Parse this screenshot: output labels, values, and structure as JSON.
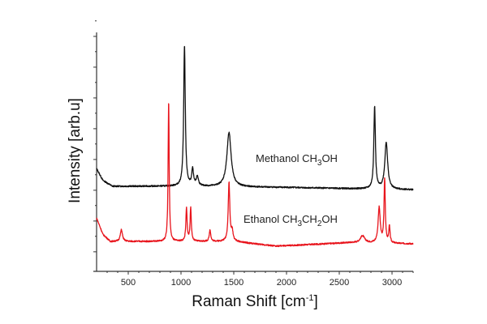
{
  "chart_data": {
    "type": "line",
    "title": "",
    "xlabel": "Raman Shift [cm",
    "xlabel_sup": "-1",
    "xlabel_end": "]",
    "ylabel": "Intensity [arb.u]",
    "xlim": [
      200,
      3200
    ],
    "ylim": [
      0,
      1
    ],
    "xticks": [
      500,
      1000,
      1500,
      2000,
      2500,
      3000
    ],
    "xtick_labels": [
      "500",
      "1000",
      "1500",
      "2000",
      "2500",
      "3000"
    ],
    "yticks": [
      0.066,
      0.197,
      0.328,
      0.459,
      0.59,
      0.721,
      0.852,
      0.983
    ],
    "grid": false,
    "series": [
      {
        "name": "Methanol CH3OH",
        "label_parts": [
          "Methanol CH",
          "3",
          "OH"
        ],
        "color": "#111111",
        "baseline": [
          [
            200,
            0.42
          ],
          [
            260,
            0.37
          ],
          [
            350,
            0.345
          ],
          [
            1000,
            0.345
          ],
          [
            2000,
            0.34
          ],
          [
            3200,
            0.33
          ]
        ],
        "peaks": [
          {
            "x": 1033,
            "height": 0.6,
            "width": 9
          },
          {
            "x": 1110,
            "height": 0.07,
            "width": 10
          },
          {
            "x": 1155,
            "height": 0.04,
            "width": 12
          },
          {
            "x": 1455,
            "height": 0.23,
            "width": 24
          },
          {
            "x": 2835,
            "height": 0.35,
            "width": 9
          },
          {
            "x": 2945,
            "height": 0.2,
            "width": 16
          }
        ]
      },
      {
        "name": "Ethanol CH3CH2OH",
        "label_parts": [
          "Ethanol CH",
          "3",
          "CH",
          "2",
          "OH"
        ],
        "color": "#e8141c",
        "baseline": [
          [
            200,
            0.21
          ],
          [
            260,
            0.14
          ],
          [
            330,
            0.11
          ],
          [
            1500,
            0.11
          ],
          [
            1900,
            0.09
          ],
          [
            2600,
            0.105
          ],
          [
            3200,
            0.1
          ]
        ],
        "peaks": [
          {
            "x": 435,
            "height": 0.05,
            "width": 12
          },
          {
            "x": 883,
            "height": 0.6,
            "width": 6
          },
          {
            "x": 1052,
            "height": 0.14,
            "width": 7
          },
          {
            "x": 1092,
            "height": 0.14,
            "width": 7
          },
          {
            "x": 1275,
            "height": 0.05,
            "width": 8
          },
          {
            "x": 1455,
            "height": 0.25,
            "width": 9
          },
          {
            "x": 1485,
            "height": 0.04,
            "width": 10
          },
          {
            "x": 2720,
            "height": 0.03,
            "width": 25
          },
          {
            "x": 2878,
            "height": 0.15,
            "width": 12
          },
          {
            "x": 2930,
            "height": 0.27,
            "width": 7
          },
          {
            "x": 2975,
            "height": 0.07,
            "width": 7
          }
        ]
      }
    ]
  }
}
